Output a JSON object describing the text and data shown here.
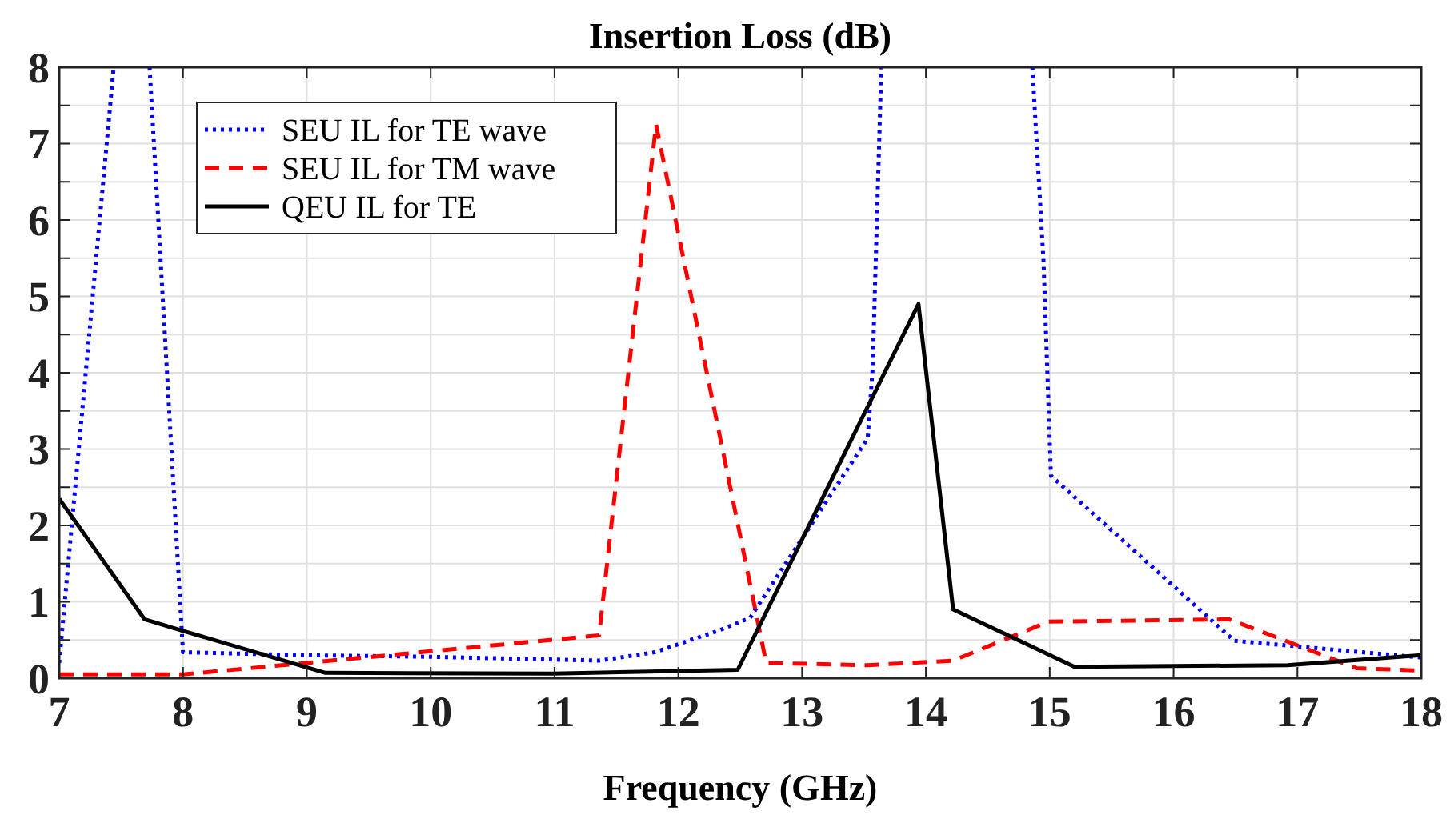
{
  "chart_data": {
    "type": "line",
    "title": "Insertion Loss (dB)",
    "xlabel": "Frequency (GHz)",
    "xlim": [
      7,
      18
    ],
    "ylim": [
      0,
      8
    ],
    "xticks": [
      7,
      8,
      9,
      10,
      11,
      12,
      13,
      14,
      15,
      16,
      17,
      18
    ],
    "yticks": [
      0,
      {
        "value": 0.5,
        "label": null
      },
      1,
      {
        "value": 1.5,
        "label": null
      },
      2,
      {
        "value": 2.5,
        "label": null
      },
      3,
      {
        "value": 3.5,
        "label": null
      },
      4,
      {
        "value": 4.5,
        "label": null
      },
      5,
      {
        "value": 5.5,
        "label": null
      },
      6,
      {
        "value": 6.5,
        "label": null
      },
      7,
      {
        "value": 7.5,
        "label": null
      },
      8
    ],
    "grid": true,
    "legend": "top left",
    "marker": "none",
    "series": [
      {
        "name": "SEU IL for TE wave",
        "color": "#0000ff",
        "line_style": "dotted",
        "x": [
          7,
          7.44,
          7.6,
          7.73,
          8,
          9,
          10,
          11.36,
          11.81,
          12.32,
          12.58,
          13.53,
          13.57,
          13.64,
          14.2,
          14.86,
          14.95,
          15.01,
          16.49,
          18
        ],
        "values": [
          0.2,
          8,
          null,
          8,
          0.34,
          0.3,
          0.28,
          0.23,
          0.34,
          0.62,
          0.79,
          3.14,
          4.06,
          8,
          null,
          8,
          5.46,
          2.65,
          0.49,
          0.27
        ]
      },
      {
        "name": "SEU IL for TM wave",
        "color": "#ff0000",
        "line_style": "dashed",
        "x": [
          7,
          8,
          9,
          11.36,
          11.82,
          12.71,
          13.53,
          14.22,
          14.99,
          16.45,
          16.92,
          17.48,
          18
        ],
        "values": [
          0.05,
          0.05,
          0.2,
          0.56,
          7.25,
          0.2,
          0.17,
          0.23,
          0.74,
          0.77,
          0.48,
          0.13,
          0.1
        ]
      },
      {
        "name": "QEU IL for TE",
        "color": "#000000",
        "line_style": "solid",
        "x": [
          7,
          7.69,
          8,
          9.15,
          10.99,
          12.48,
          13.94,
          14.22,
          15.2,
          16.92,
          18
        ],
        "values": [
          2.35,
          0.77,
          0.62,
          0.07,
          0.06,
          0.11,
          4.9,
          0.9,
          0.15,
          0.17,
          0.3
        ]
      }
    ]
  }
}
